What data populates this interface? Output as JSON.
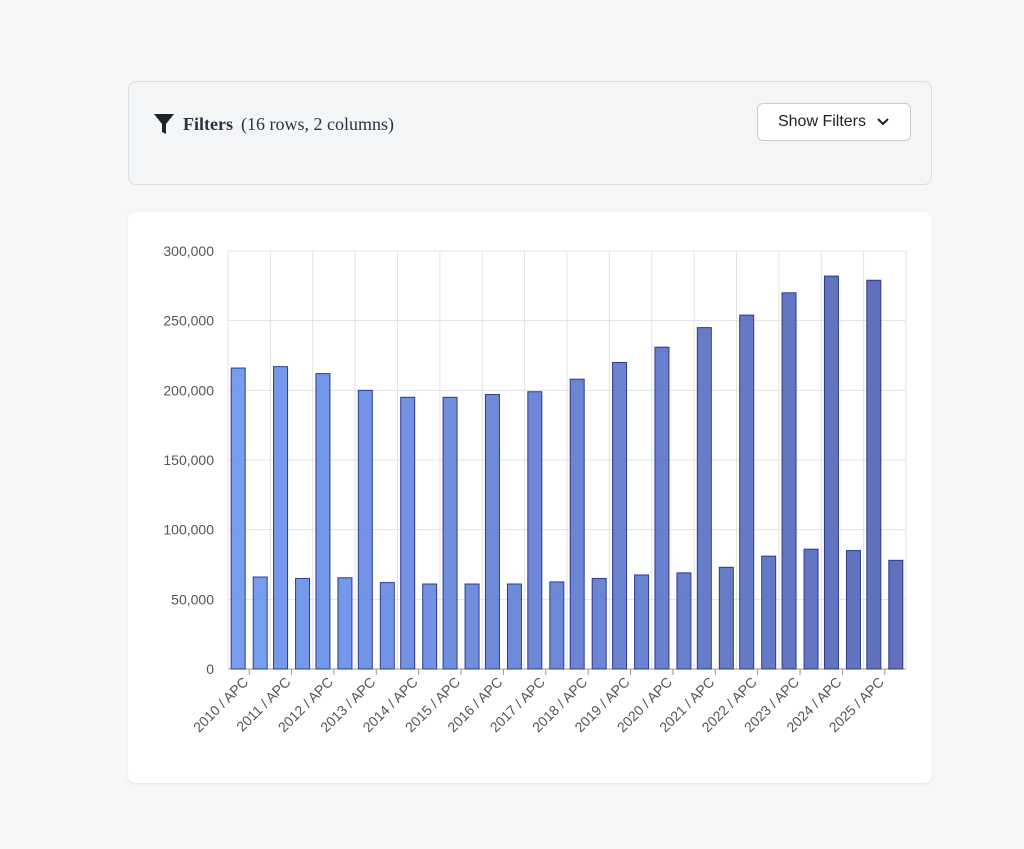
{
  "header": {
    "filters_label": "Filters",
    "filters_summary": "(16 rows, 2 columns)",
    "button": "Show Filters"
  },
  "chart_data": {
    "type": "bar",
    "categories": [
      "2010 / APC",
      "2011 / APC",
      "2012 / APC",
      "2013 / APC",
      "2014 / APC",
      "2015 / APC",
      "2016 / APC",
      "2017 / APC",
      "2018 / APC",
      "2019 / APC",
      "2020 / APC",
      "2021 / APC",
      "2022 / APC",
      "2023 / APC",
      "2024 / APC",
      "2025 / APC"
    ],
    "colors": [
      "#7098ee",
      "#6e95ea",
      "#6d92e7",
      "#6b8ee3",
      "#6a8be0",
      "#6888dc",
      "#6685d8",
      "#6582d5",
      "#637ed1",
      "#627bce",
      "#6078ca",
      "#5e75c6",
      "#5d72c3",
      "#5b6ebf",
      "#5a6bbc",
      "#5868b8"
    ],
    "series": [
      {
        "values": [
          216000,
          217000,
          212000,
          200000,
          195000,
          195000,
          197000,
          199000,
          208000,
          220000,
          231000,
          245000,
          254000,
          270000,
          282000,
          279000
        ]
      },
      {
        "values": [
          66000,
          65000,
          65500,
          62000,
          61000,
          61000,
          61000,
          62500,
          65000,
          67500,
          69000,
          73000,
          81000,
          86000,
          85000,
          78000
        ]
      }
    ],
    "ylim": [
      0,
      300000
    ],
    "yticks": [
      0,
      {
        "value": 50000,
        "label": "50,000"
      },
      {
        "value": 100000,
        "label": "100,000"
      },
      {
        "value": 150000,
        "label": "150,000"
      },
      {
        "value": 200000,
        "label": "200,000"
      },
      {
        "value": 250000,
        "label": "250,000"
      },
      {
        "value": 300000,
        "label": "300,000"
      }
    ],
    "grid": true
  }
}
